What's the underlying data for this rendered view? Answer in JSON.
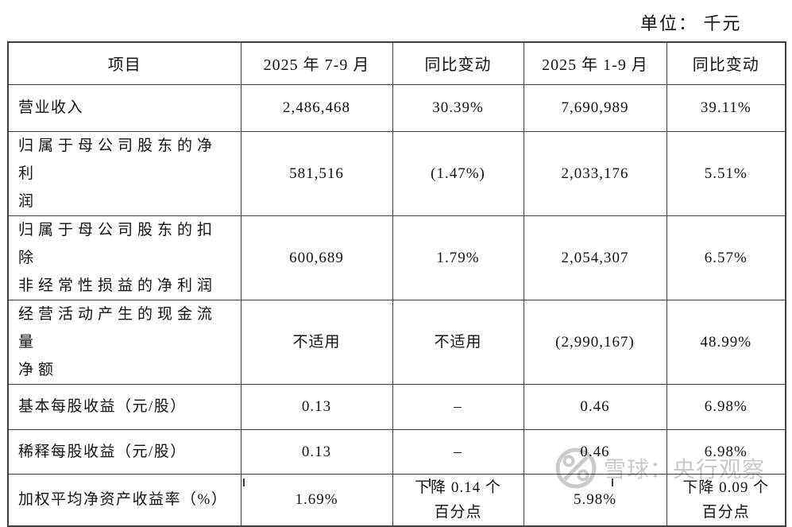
{
  "unit_label": "单位： 千元",
  "table": {
    "columns": [
      "项目",
      "2025 年 7-9 月",
      "同比变动",
      "2025 年 1-9 月",
      "同比变动"
    ],
    "rows": [
      {
        "item_lines": [
          "营业收入"
        ],
        "cells": [
          [
            "2,486,468"
          ],
          [
            "30.39%"
          ],
          [
            "7,690,989"
          ],
          [
            "39.11%"
          ]
        ]
      },
      {
        "item_lines": [
          "归属于母公司股东的净利",
          "润"
        ],
        "cells": [
          [
            "581,516"
          ],
          [
            "(1.47%)"
          ],
          [
            "2,033,176"
          ],
          [
            "5.51%"
          ]
        ]
      },
      {
        "item_lines": [
          "归属于母公司股东的扣除",
          "非经常性损益的净利润"
        ],
        "cells": [
          [
            "600,689"
          ],
          [
            "1.79%"
          ],
          [
            "2,054,307"
          ],
          [
            "6.57%"
          ]
        ]
      },
      {
        "item_lines": [
          "经营活动产生的现金流量",
          "净额"
        ],
        "cells": [
          [
            "不适用"
          ],
          [
            "不适用"
          ],
          [
            "(2,990,167)"
          ],
          [
            "48.99%"
          ]
        ]
      },
      {
        "item_lines": [
          "基本每股收益（元/股）"
        ],
        "cells": [
          [
            "0.13"
          ],
          [
            "–"
          ],
          [
            "0.46"
          ],
          [
            "6.98%"
          ]
        ]
      },
      {
        "item_lines": [
          "稀释每股收益（元/股）"
        ],
        "cells": [
          [
            "0.13"
          ],
          [
            "–"
          ],
          [
            "0.46"
          ],
          [
            "6.98%"
          ]
        ]
      },
      {
        "item_lines": [
          "加权平均净资产收益率（%）"
        ],
        "cells": [
          [
            "1.69%"
          ],
          [
            "下降 0.14 个",
            "百分点"
          ],
          [
            "5.98%"
          ],
          [
            "下降 0.09 个",
            "百分点"
          ]
        ]
      }
    ]
  },
  "watermark": {
    "logo": "snowball-icon",
    "text": "雪球：央行观察",
    "color": "#c3c3c3"
  }
}
